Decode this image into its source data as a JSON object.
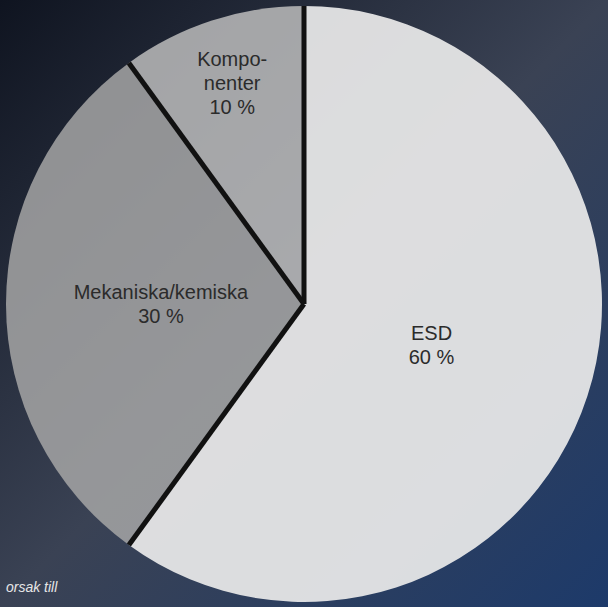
{
  "chart_data": {
    "type": "pie",
    "categories": [
      "ESD",
      "Mekaniska/kemiska",
      "Kompo-nenter"
    ],
    "values": [
      60,
      30,
      10
    ],
    "value_labels": [
      "60 %",
      "30 %",
      "10 %"
    ],
    "colors": [
      "#e9e9e9",
      "#a6a6a6",
      "#bcbcbc"
    ],
    "data_labels": true,
    "annotations": [
      "orsak till"
    ]
  }
}
